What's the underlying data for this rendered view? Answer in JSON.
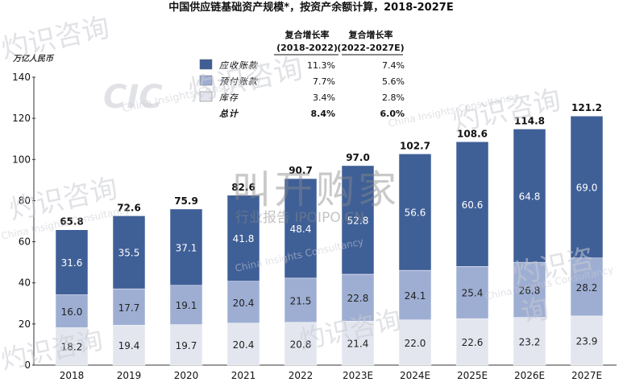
{
  "chart_data": {
    "type": "bar",
    "title": "中国供应链基础资产规模*，按资产余额计算，2018-2027E",
    "unit_label": "万亿人民币",
    "categories": [
      "2018",
      "2019",
      "2020",
      "2021",
      "2022",
      "2023E",
      "2024E",
      "2025E",
      "2026E",
      "2027E"
    ],
    "series": [
      {
        "name": "库存",
        "color": "#e3e6ef",
        "values": [
          18.2,
          19.4,
          19.7,
          20.4,
          20.8,
          21.4,
          22.0,
          22.6,
          23.2,
          23.9
        ]
      },
      {
        "name": "预付账款",
        "color": "#9eaed3",
        "values": [
          16.0,
          17.7,
          19.1,
          20.4,
          21.5,
          22.8,
          24.1,
          25.4,
          26.8,
          28.2
        ]
      },
      {
        "name": "应收账款",
        "color": "#3f5f97",
        "values": [
          31.6,
          35.5,
          37.1,
          41.8,
          48.4,
          52.8,
          56.6,
          60.6,
          64.8,
          69.0
        ]
      }
    ],
    "totals": [
      65.8,
      72.6,
      75.9,
      82.6,
      90.7,
      97.0,
      102.7,
      108.6,
      114.8,
      121.2
    ],
    "ylim": [
      0,
      140
    ],
    "yticks": [
      0,
      20,
      40,
      60,
      80,
      100,
      120,
      140
    ],
    "legend_table": {
      "col1_header": [
        "复合增长率",
        "(2018-2022)"
      ],
      "col2_header": [
        "复合增长率",
        "(2022-2027E)"
      ],
      "rows": [
        {
          "label": "应收账款",
          "c1": "11.3%",
          "c2": "7.4%",
          "color": "#3f5f97"
        },
        {
          "label": "预付账款",
          "c1": "7.7%",
          "c2": "5.6%",
          "color": "#9eaed3"
        },
        {
          "label": "库存",
          "c1": "3.4%",
          "c2": "2.8%",
          "color": "#e3e6ef"
        },
        {
          "label": "总计",
          "c1": "8.4%",
          "c2": "6.0%",
          "color": null
        }
      ]
    }
  },
  "watermarks": {
    "brand_cn": "灼识咨询",
    "brand_en": "China Insights Consultancy",
    "brand_logo": "CIC",
    "center_cn": "叫开购家",
    "center_sub": "行业报告 IPOIPO.CN"
  }
}
